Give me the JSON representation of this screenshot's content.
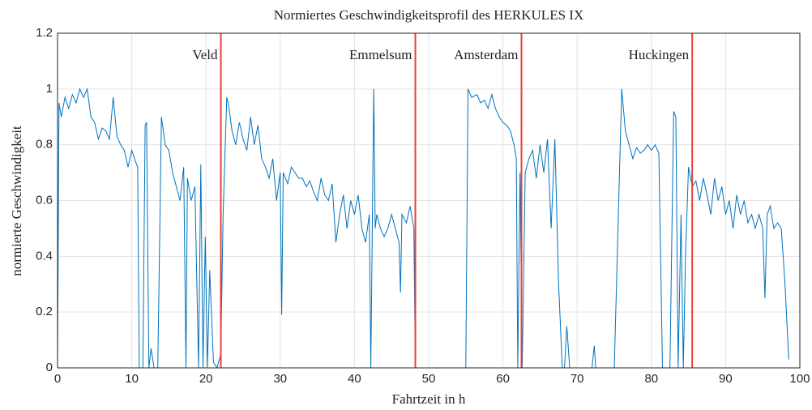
{
  "chart_data": {
    "type": "line",
    "title": "Normiertes Geschwindigkeitsprofil des HERKULES IX",
    "xlabel": "Fahrtzeit in h",
    "ylabel": "normierte Geschwindigkeit",
    "xlim": [
      0,
      100
    ],
    "ylim": [
      0,
      1.2
    ],
    "xticks": [
      0,
      10,
      20,
      30,
      40,
      50,
      60,
      70,
      80,
      90,
      100
    ],
    "yticks": [
      0,
      0.2,
      0.4,
      0.6,
      0.8,
      1,
      1.2
    ],
    "grid": true,
    "markers": [
      {
        "label": "Veld",
        "x": 22
      },
      {
        "label": "Emmelsum",
        "x": 48.2
      },
      {
        "label": "Amsterdam",
        "x": 62.5
      },
      {
        "label": "Huckingen",
        "x": 85.5
      }
    ],
    "marker_color": "#e8403a",
    "series": [
      {
        "color": "#0072bd",
        "x": [
          0,
          0.2,
          0.5,
          1,
          1.5,
          2,
          2.5,
          3,
          3.5,
          4,
          4.5,
          5,
          5.5,
          6,
          6.5,
          7,
          7.5,
          8,
          8.5,
          9,
          9.5,
          10,
          10.5,
          10.8,
          11,
          11.5,
          11.8,
          12,
          12.3,
          12.6,
          13,
          13.5,
          14,
          14.5,
          15,
          15.5,
          16,
          16.5,
          17,
          17.3,
          17.5,
          18,
          18.5,
          19,
          19.3,
          19.6,
          19.9,
          20.2,
          20.5,
          21,
          21.5,
          22,
          22.3,
          22.8,
          23,
          23.5,
          24,
          24.5,
          25,
          25.5,
          26,
          26.5,
          27,
          27.5,
          28,
          28.5,
          29,
          29.5,
          30,
          30.2,
          30.4,
          31,
          31.5,
          32,
          32.5,
          33,
          33.5,
          34,
          34.5,
          35,
          35.5,
          36,
          36.5,
          37,
          37.5,
          38,
          38.5,
          39,
          39.5,
          40,
          40.5,
          41,
          41.5,
          42,
          42.2,
          42.4,
          42.6,
          42.8,
          43,
          43.5,
          44,
          44.5,
          45,
          45.5,
          46,
          46.2,
          46.4,
          47,
          47.5,
          48,
          48.2,
          49,
          55,
          55.3,
          55.8,
          56.5,
          57,
          57.5,
          58,
          58.5,
          59,
          59.5,
          60,
          60.5,
          61,
          61.5,
          61.8,
          62,
          62.3,
          62.6,
          63,
          63.5,
          64,
          64.5,
          65,
          65.5,
          66,
          66.5,
          67,
          67.5,
          68,
          68.3,
          68.6,
          69,
          72,
          72.3,
          72.5,
          75,
          75.5,
          76,
          76.5,
          77,
          77.5,
          78,
          78.5,
          79,
          79.5,
          80,
          80.5,
          81,
          81.5,
          82.5,
          83,
          83.3,
          83.6,
          84,
          84.3,
          84.6,
          85,
          85.5,
          86,
          86.5,
          87,
          87.5,
          88,
          88.5,
          89,
          89.5,
          90,
          90.5,
          91,
          91.5,
          92,
          92.5,
          93,
          93.5,
          94,
          94.5,
          95,
          95.3,
          95.6,
          96,
          96.5,
          97,
          97.5,
          98,
          98.5
        ],
        "values": [
          0,
          0.95,
          0.9,
          0.97,
          0.93,
          0.98,
          0.95,
          1.0,
          0.97,
          1.0,
          0.9,
          0.88,
          0.82,
          0.86,
          0.85,
          0.82,
          0.97,
          0.83,
          0.8,
          0.78,
          0.72,
          0.78,
          0.74,
          0.72,
          0,
          0,
          0.87,
          0.88,
          0,
          0.07,
          0,
          0,
          0.9,
          0.8,
          0.78,
          0.7,
          0.65,
          0.6,
          0.72,
          0,
          0.68,
          0.6,
          0.65,
          0,
          0.73,
          0,
          0.47,
          0,
          0.35,
          0.02,
          0,
          0.05,
          0.55,
          0.97,
          0.95,
          0.85,
          0.8,
          0.88,
          0.82,
          0.78,
          0.9,
          0.8,
          0.87,
          0.75,
          0.72,
          0.68,
          0.75,
          0.6,
          0.7,
          0.19,
          0.7,
          0.66,
          0.72,
          0.7,
          0.68,
          0.68,
          0.65,
          0.67,
          0.63,
          0.6,
          0.68,
          0.62,
          0.6,
          0.66,
          0.45,
          0.55,
          0.62,
          0.5,
          0.6,
          0.55,
          0.62,
          0.5,
          0.45,
          0.55,
          0,
          0.5,
          1.0,
          0.5,
          0.55,
          0.5,
          0.47,
          0.5,
          0.55,
          0.5,
          0.45,
          0.27,
          0.55,
          0.52,
          0.58,
          0.5,
          0,
          0,
          0,
          1.0,
          0.97,
          0.98,
          0.95,
          0.96,
          0.93,
          0.98,
          0.93,
          0.9,
          0.88,
          0.87,
          0.85,
          0.8,
          0.75,
          0,
          0.7,
          0,
          0.7,
          0.75,
          0.78,
          0.68,
          0.8,
          0.7,
          0.82,
          0.5,
          0.82,
          0.3,
          0,
          0,
          0.15,
          0,
          0,
          0.08,
          0,
          0,
          0.5,
          1.0,
          0.85,
          0.8,
          0.75,
          0.79,
          0.77,
          0.78,
          0.8,
          0.78,
          0.8,
          0.77,
          0,
          0,
          0.92,
          0.9,
          0,
          0.55,
          0,
          0.4,
          0.72,
          0.65,
          0.67,
          0.6,
          0.68,
          0.62,
          0.55,
          0.68,
          0.6,
          0.65,
          0.55,
          0.6,
          0.5,
          0.62,
          0.55,
          0.6,
          0.52,
          0.55,
          0.5,
          0.55,
          0.5,
          0.25,
          0.55,
          0.58,
          0.5,
          0.52,
          0.5,
          0.3,
          0.03
        ]
      }
    ]
  }
}
